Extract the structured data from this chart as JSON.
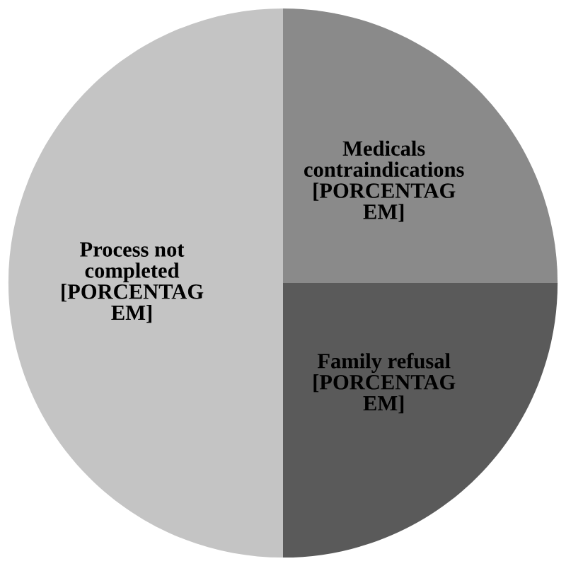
{
  "chart_data": {
    "type": "pie",
    "categories": [
      "Medicals\ncontraindications",
      "Family refusal",
      "Process not\ncompleted"
    ],
    "values": [
      25,
      25,
      50
    ],
    "colors": [
      "#8a8a8a",
      "#5a5a5a",
      "#c4c4c4"
    ],
    "value_labels": [
      "[PORCENTAG\nEM]",
      "[PORCENTAG\nEM]",
      "[PORCENTAG\nEM]"
    ],
    "legend": false
  }
}
